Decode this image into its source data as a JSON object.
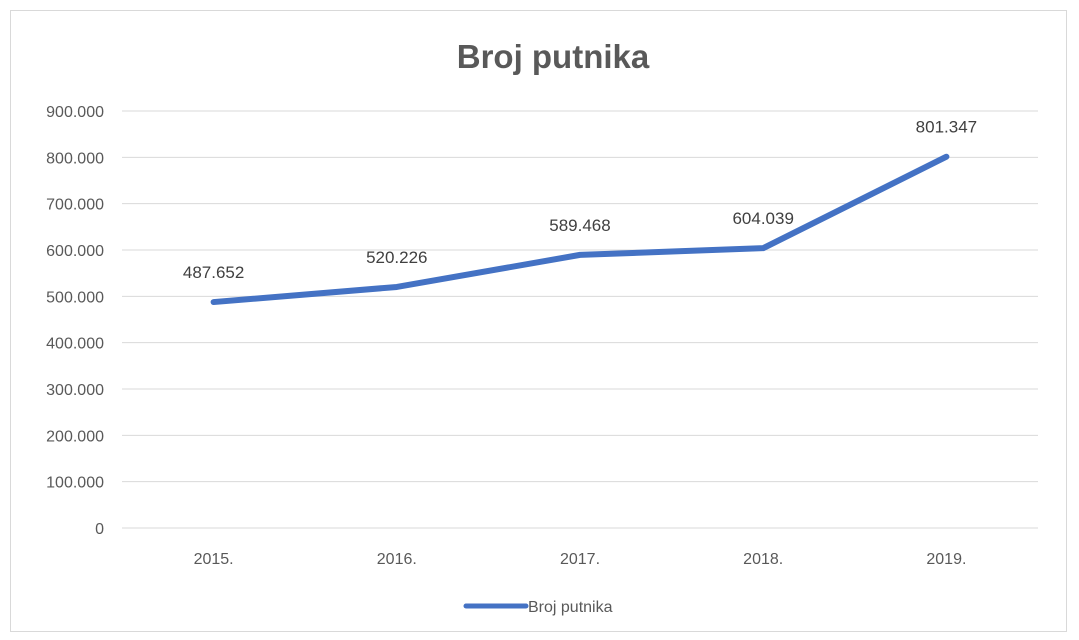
{
  "chart_data": {
    "type": "line",
    "title": "Broj putnika",
    "xlabel": "",
    "ylabel": "",
    "categories": [
      "2015.",
      "2016.",
      "2017.",
      "2018.",
      "2019."
    ],
    "series": [
      {
        "name": "Broj putnika",
        "values": [
          487652,
          520226,
          589468,
          604039,
          801347
        ],
        "labels": [
          "487.652",
          "520.226",
          "589.468",
          "604.039",
          "801.347"
        ],
        "color": "#4472c4"
      }
    ],
    "ylim": [
      0,
      900000
    ],
    "yticks": [
      0,
      100000,
      200000,
      300000,
      400000,
      500000,
      600000,
      700000,
      800000,
      900000
    ],
    "ytick_labels": [
      "0",
      "100.000",
      "200.000",
      "300.000",
      "400.000",
      "500.000",
      "600.000",
      "700.000",
      "800.000",
      "900.000"
    ],
    "grid": true,
    "legend_position": "bottom",
    "gridline_color": "#d9d9d9",
    "text_color": "#595959"
  }
}
